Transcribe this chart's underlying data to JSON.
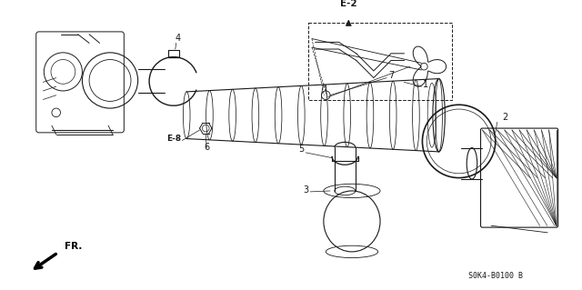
{
  "bg_color": "#ffffff",
  "line_color": "#1a1a1a",
  "footer_code": "S0K4-B0100 B",
  "fig_width": 6.4,
  "fig_height": 3.19,
  "dpi": 100
}
